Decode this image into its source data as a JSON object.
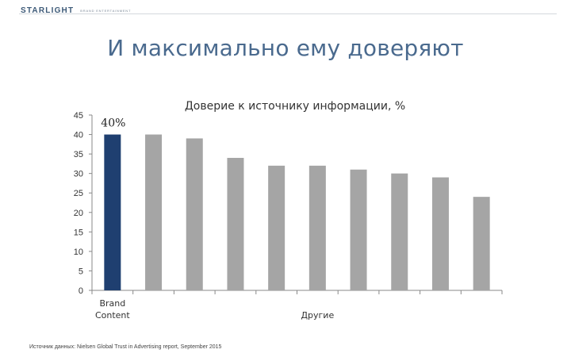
{
  "header": {
    "logo": "STARLIGHT",
    "logo_sub": "BRAND ENTERTAINMENT"
  },
  "slide_title": "И максимально ему доверяют",
  "source_note": "Источник данных: Nielsen Global Trust in Advertising report, September 2015",
  "colors": {
    "highlight": "#1f3f70",
    "others": "#a5a5a5"
  },
  "chart_data": {
    "type": "bar",
    "title": "Доверие к источнику информации, %",
    "values": [
      40,
      40,
      39,
      34,
      32,
      32,
      31,
      30,
      29,
      24
    ],
    "highlight_index": 0,
    "highlight_label": "40%",
    "ylim": [
      0,
      45
    ],
    "yticks": [
      0,
      5,
      10,
      15,
      20,
      25,
      30,
      35,
      40,
      45
    ],
    "group_labels": [
      {
        "label": "Brand\nContent",
        "from": 0,
        "to": 0
      },
      {
        "label": "Другие",
        "from": 1,
        "to": 9
      }
    ],
    "grid": false,
    "legend": "none"
  }
}
